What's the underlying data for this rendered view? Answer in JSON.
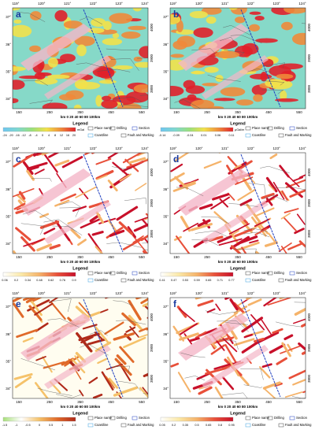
{
  "lon_labels": [
    "119°",
    "120°",
    "121°",
    "122°",
    "123°",
    "124°"
  ],
  "lat_labels": [
    "37°",
    "36°",
    "35°",
    "34°"
  ],
  "northing_labels": [
    "4000",
    "3900",
    "3800"
  ],
  "easting_labels": [
    "150",
    "250",
    "350",
    "450",
    "550"
  ],
  "scale_label": "km 0 20 40 60 80 100km",
  "legend_title": "Legend",
  "legend_items": [
    "Place name",
    "Drilling",
    "Section",
    "Coastline",
    "Fault and Marking"
  ],
  "panels": [
    {
      "label": "a",
      "colorbar_ticks": [
        "-24",
        "-20",
        "-16",
        "-12",
        "-8",
        "-4",
        "0",
        "4",
        "8",
        "12",
        "16",
        "20"
      ],
      "unit": "mGal",
      "colors": [
        "#6ec6f0",
        "#7fd8d0",
        "#9be07a",
        "#f2e14a",
        "#f08a3a",
        "#e0202a"
      ],
      "background": "#86d9c8"
    },
    {
      "label": "b",
      "colorbar_ticks": [
        "-0.14",
        "-0.09",
        "-0.04",
        "0.01",
        "0.06",
        "0.11"
      ],
      "unit": "μGal/m",
      "colors": [
        "#6ec6f0",
        "#7fd8d0",
        "#9be07a",
        "#f2e14a",
        "#f08a3a",
        "#e0202a"
      ],
      "background": "#86d9c8"
    },
    {
      "label": "c",
      "colorbar_ticks": [
        "0.06",
        "0.2",
        "0.34",
        "0.48",
        "0.62",
        "0.76",
        "0.9"
      ],
      "colors": [
        "#ffffff",
        "#fbe9a8",
        "#f5b36a",
        "#e8503a",
        "#c8102a"
      ],
      "background": "#ffffff"
    },
    {
      "label": "d",
      "colorbar_ticks": [
        "0.41",
        "0.47",
        "0.53",
        "0.59",
        "0.65",
        "0.71",
        "0.77"
      ],
      "colors": [
        "#ffffff",
        "#fbe9a8",
        "#f5b36a",
        "#e8503a",
        "#c8102a"
      ],
      "background": "#ffffff"
    },
    {
      "label": "e",
      "colorbar_ticks": [
        "-1.5",
        "-1",
        "-0.5",
        "0",
        "0.5",
        "1",
        "1.5"
      ],
      "colors": [
        "#a8e07a",
        "#ffffff",
        "#f5c26a",
        "#e06a2a",
        "#b02a1a"
      ],
      "background": "#fffdf0"
    },
    {
      "label": "f",
      "colorbar_ticks": [
        "0.05",
        "0.2",
        "0.35",
        "0.5",
        "0.65",
        "0.8",
        "0.95"
      ],
      "colors": [
        "#ffffff",
        "#fbe9a8",
        "#f5b36a",
        "#e8503a",
        "#c8102a"
      ],
      "background": "#ffffff"
    }
  ]
}
